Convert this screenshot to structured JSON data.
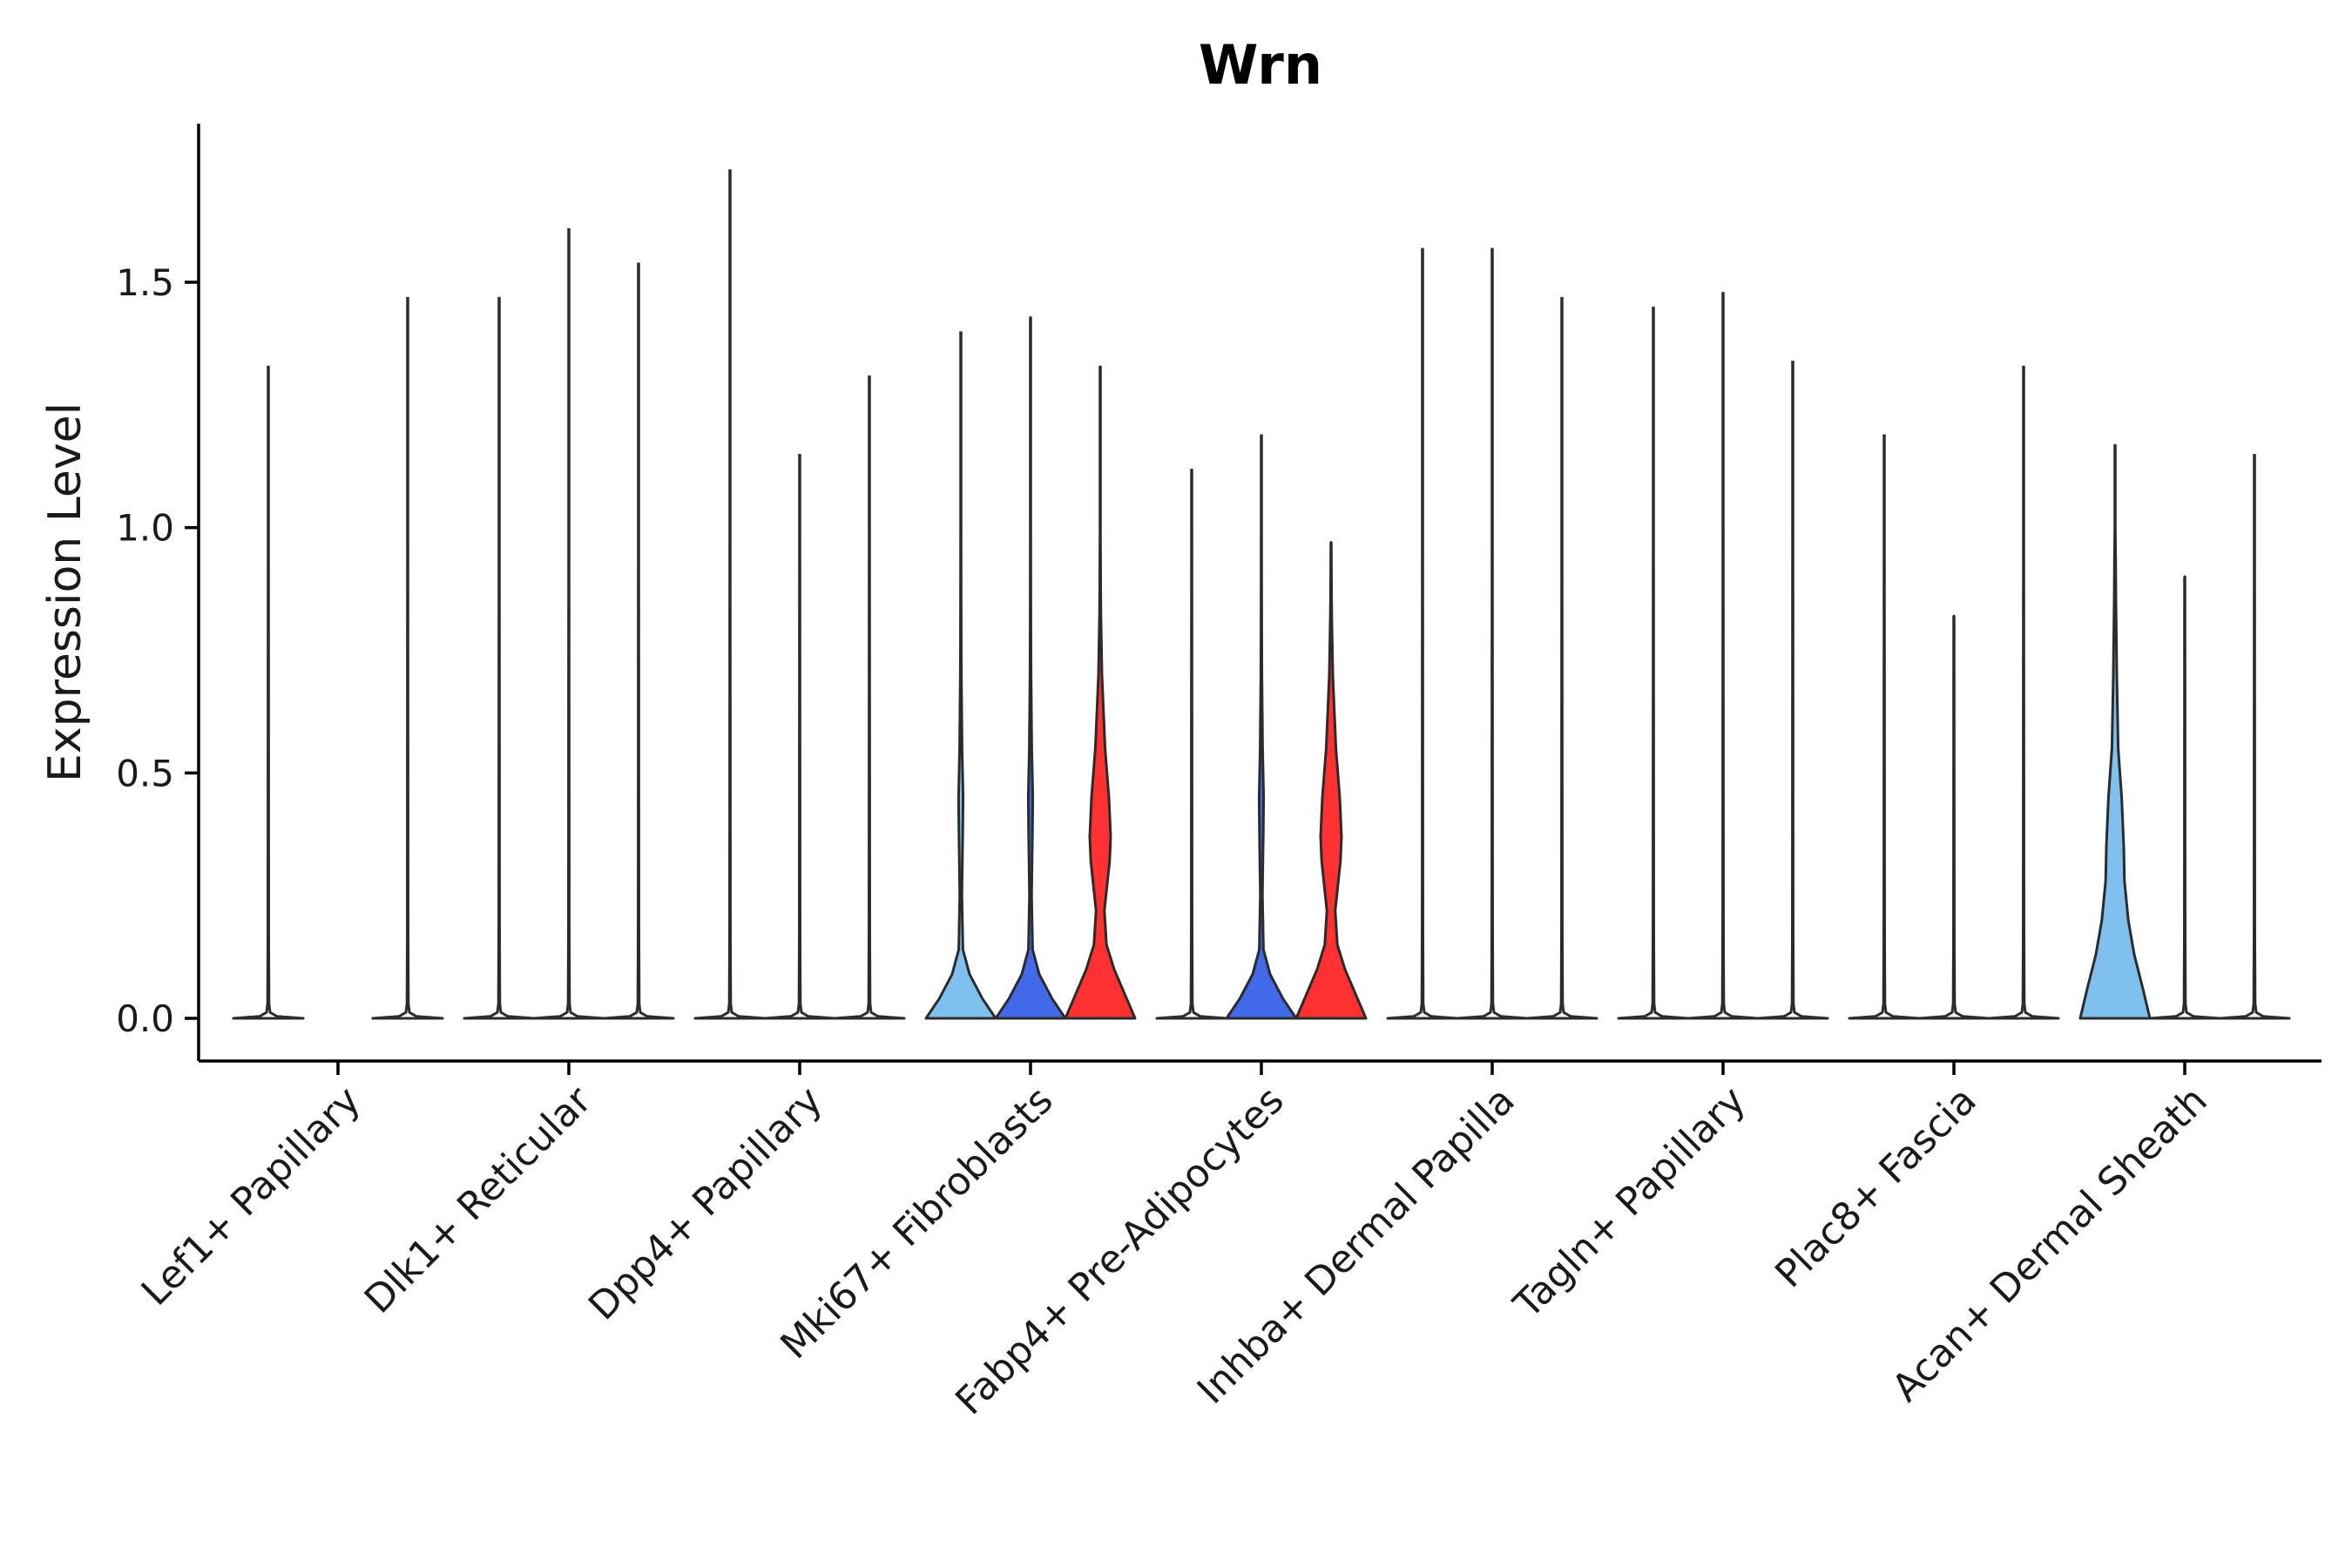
{
  "chart_data": {
    "type": "violin",
    "title": "Wrn",
    "xlabel": "",
    "ylabel": "Expression Level",
    "ylim": [
      -0.09,
      1.82
    ],
    "yticks": [
      0.0,
      0.5,
      1.0,
      1.5
    ],
    "ytick_labels": [
      "0.0",
      "0.5",
      "1.0",
      "1.5"
    ],
    "legend": "none",
    "grid": false,
    "series_colors": [
      "#7fc0ee",
      "#4169e8",
      "#ff3030"
    ],
    "categories": [
      "Lef1+ Papillary",
      "Dlk1+ Reticular",
      "Dpp4+ Papillary",
      "Mki67+ Fibroblasts",
      "Fabp4+ Pre-Adipocytes",
      "Inhba+ Dermal Papilla",
      "Tagln+ Papillary",
      "Plac8+ Fascia",
      "Acan+ Dermal Sheath"
    ],
    "groups": [
      {
        "category": "Lef1+ Papillary",
        "max": [
          1.33,
          0.0,
          1.47
        ],
        "shape": [
          "flat",
          "none",
          "flat"
        ]
      },
      {
        "category": "Dlk1+ Reticular",
        "max": [
          1.47,
          1.61,
          1.54
        ],
        "shape": [
          "flat",
          "flat",
          "flat"
        ]
      },
      {
        "category": "Dpp4+ Papillary",
        "max": [
          1.73,
          1.15,
          1.31
        ],
        "shape": [
          "flat",
          "flat",
          "flat"
        ]
      },
      {
        "category": "Mki67+ Fibroblasts",
        "max": [
          1.4,
          1.43,
          1.33
        ],
        "shape": [
          "bimodal-low",
          "bimodal-low",
          "bimodal-high"
        ]
      },
      {
        "category": "Fabp4+ Pre-Adipocytes",
        "max": [
          1.12,
          1.19,
          0.97
        ],
        "shape": [
          "flat",
          "bimodal-low",
          "bimodal-high"
        ]
      },
      {
        "category": "Inhba+ Dermal Papilla",
        "max": [
          1.57,
          1.57,
          1.47
        ],
        "shape": [
          "flat",
          "flat",
          "flat"
        ]
      },
      {
        "category": "Tagln+ Papillary",
        "max": [
          1.45,
          1.48,
          1.34
        ],
        "shape": [
          "flat",
          "flat",
          "flat"
        ]
      },
      {
        "category": "Plac8+ Fascia",
        "max": [
          1.19,
          0.82,
          1.33
        ],
        "shape": [
          "flat",
          "flat",
          "flat"
        ]
      },
      {
        "category": "Acan+ Dermal Sheath",
        "max": [
          1.17,
          0.9,
          1.15
        ],
        "shape": [
          "wide",
          "flat",
          "flat"
        ]
      }
    ]
  }
}
